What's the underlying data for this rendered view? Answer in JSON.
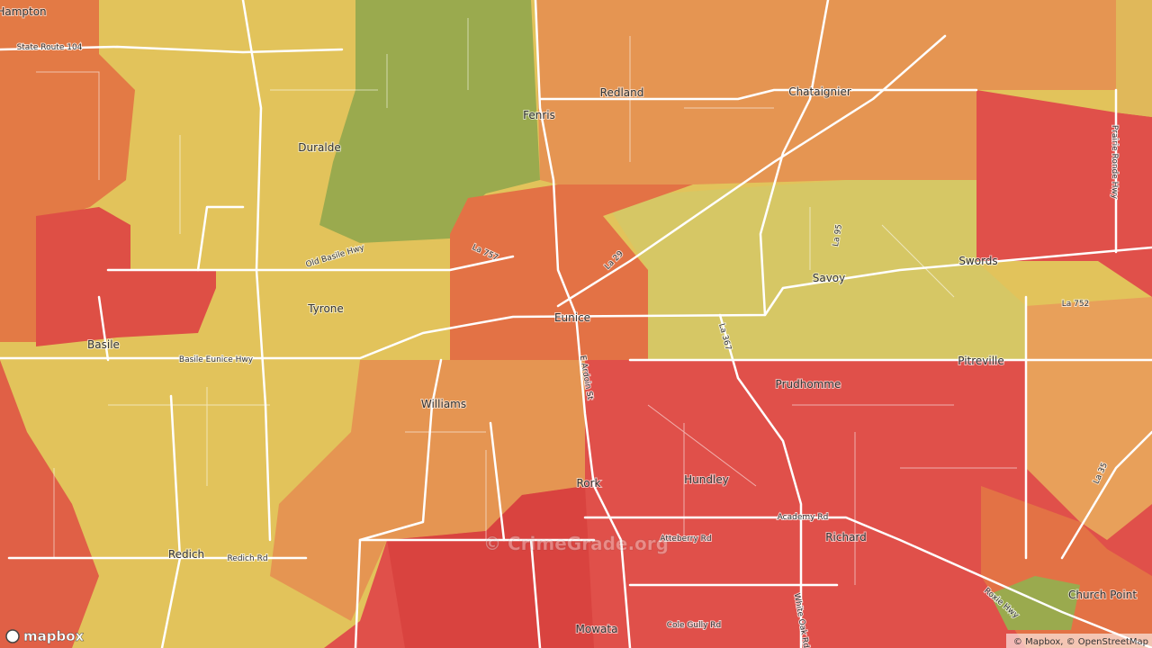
{
  "places": [
    "Hampton",
    "Duralde",
    "Fenris",
    "Redland",
    "Chataignier",
    "Tyrone",
    "Basile",
    "Eunice",
    "Savoy",
    "Swords",
    "Pitreville",
    "Prudhomme",
    "Williams",
    "Hundley",
    "Rork",
    "Richard",
    "Redich",
    "Mowata",
    "Church Point"
  ],
  "roads": [
    "State Route 104",
    "Old Basile Hwy",
    "La 757",
    "La 29",
    "La 95",
    "La 752",
    "Basile Eunice Hwy",
    "E Ardoin St",
    "La 367",
    "Academy Rd",
    "Atteberry Rd",
    "Redich Rd",
    "Cole Gully Rd",
    "White Oak Rd",
    "Prairie Ronde Hwy",
    "La 35",
    "Roxie Hwy"
  ],
  "watermark": "© CrimeGrade.org",
  "logo": "mapbox",
  "attribution": "© Mapbox, © OpenStreetMap"
}
